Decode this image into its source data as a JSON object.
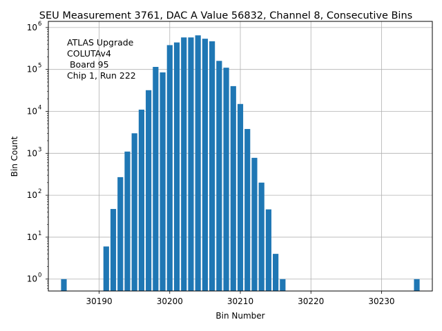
{
  "chart_data": {
    "type": "bar",
    "title": "SEU Measurement 3761, DAC A Value 56832, Channel 8, Consecutive Bins",
    "xlabel": "Bin Number",
    "ylabel": "Bin Count",
    "yscale": "log",
    "xlim": [
      30182.8,
      30237.2
    ],
    "ylim": [
      0.52,
      1400000
    ],
    "grid": true,
    "color": "#1f77b4",
    "xticks": [
      30190,
      30200,
      30210,
      30220,
      30230
    ],
    "yticks": [
      {
        "value": 1,
        "base": "10",
        "exp": "0"
      },
      {
        "value": 10,
        "base": "10",
        "exp": "1"
      },
      {
        "value": 100,
        "base": "10",
        "exp": "2"
      },
      {
        "value": 1000,
        "base": "10",
        "exp": "3"
      },
      {
        "value": 10000,
        "base": "10",
        "exp": "4"
      },
      {
        "value": 100000,
        "base": "10",
        "exp": "5"
      },
      {
        "value": 1000000,
        "base": "10",
        "exp": "6"
      }
    ],
    "annotation": [
      "ATLAS Upgrade",
      "COLUTAv4",
      " Board 95",
      "Chip 1, Run 222"
    ],
    "bins": [
      30185,
      30191,
      30192,
      30193,
      30194,
      30195,
      30196,
      30197,
      30198,
      30199,
      30200,
      30201,
      30202,
      30203,
      30204,
      30205,
      30206,
      30207,
      30208,
      30209,
      30210,
      30211,
      30212,
      30213,
      30214,
      30215,
      30216,
      30235
    ],
    "counts": [
      1,
      6,
      47,
      270,
      1100,
      3000,
      11000,
      32000,
      115000,
      85000,
      380000,
      440000,
      580000,
      580000,
      650000,
      540000,
      470000,
      160000,
      110000,
      40000,
      15000,
      3800,
      780,
      200,
      46,
      4,
      1,
      1
    ]
  }
}
